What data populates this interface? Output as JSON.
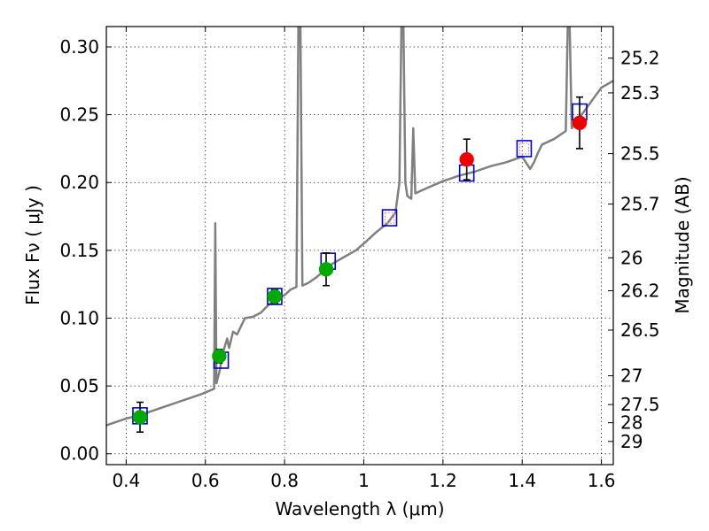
{
  "chart_data": {
    "type": "scatter",
    "title": "",
    "xlabel": "Wavelength  λ (μm)",
    "ylabel": "Flux  Fν  ( μJy )",
    "y2label": "Magnitude (AB)",
    "xlim": [
      0.35,
      1.63
    ],
    "ylim": [
      -0.008,
      0.315
    ],
    "grid": true,
    "x_ticks": [
      0.4,
      0.6,
      0.8,
      1.0,
      1.2,
      1.4,
      1.6
    ],
    "x_tick_labels": [
      "0.4",
      "0.6",
      "0.8",
      "1",
      "1.2",
      "1.4",
      "1.6"
    ],
    "y_ticks": [
      0.0,
      0.05,
      0.1,
      0.15,
      0.2,
      0.25,
      0.3
    ],
    "y_tick_labels": [
      "0.00",
      "0.05",
      "0.10",
      "0.15",
      "0.20",
      "0.25",
      "0.30"
    ],
    "mag_ticks": [
      {
        "label": "25.2",
        "flux": 0.2917
      },
      {
        "label": "25.3",
        "flux": 0.2661
      },
      {
        "label": "25.5",
        "flux": 0.2213
      },
      {
        "label": "25.7",
        "flux": 0.1841
      },
      {
        "label": "26",
        "flux": 0.1445
      },
      {
        "label": "26.2",
        "flux": 0.1202
      },
      {
        "label": "26.5",
        "flux": 0.0912
      },
      {
        "label": "27",
        "flux": 0.0575
      },
      {
        "label": "27.5",
        "flux": 0.0363
      },
      {
        "label": "28",
        "flux": 0.0229
      },
      {
        "label": "29",
        "flux": 0.0091
      }
    ],
    "spectrum": {
      "color": "#808080",
      "points": [
        [
          0.35,
          0.021
        ],
        [
          0.38,
          0.024
        ],
        [
          0.4,
          0.026
        ],
        [
          0.43,
          0.028
        ],
        [
          0.46,
          0.031
        ],
        [
          0.5,
          0.035
        ],
        [
          0.53,
          0.038
        ],
        [
          0.56,
          0.041
        ],
        [
          0.59,
          0.044
        ],
        [
          0.615,
          0.047
        ],
        [
          0.622,
          0.048
        ],
        [
          0.625,
          0.17
        ],
        [
          0.628,
          0.052
        ],
        [
          0.635,
          0.06
        ],
        [
          0.645,
          0.075
        ],
        [
          0.655,
          0.085
        ],
        [
          0.66,
          0.078
        ],
        [
          0.67,
          0.09
        ],
        [
          0.68,
          0.088
        ],
        [
          0.69,
          0.094
        ],
        [
          0.7,
          0.1
        ],
        [
          0.72,
          0.101
        ],
        [
          0.74,
          0.104
        ],
        [
          0.76,
          0.11
        ],
        [
          0.78,
          0.114
        ],
        [
          0.8,
          0.117
        ],
        [
          0.815,
          0.121
        ],
        [
          0.83,
          0.123
        ],
        [
          0.835,
          0.315
        ],
        [
          0.84,
          0.315
        ],
        [
          0.845,
          0.124
        ],
        [
          0.86,
          0.126
        ],
        [
          0.88,
          0.13
        ],
        [
          0.9,
          0.135
        ],
        [
          0.92,
          0.14
        ],
        [
          0.95,
          0.145
        ],
        [
          0.98,
          0.15
        ],
        [
          1.0,
          0.155
        ],
        [
          1.03,
          0.163
        ],
        [
          1.06,
          0.17
        ],
        [
          1.08,
          0.178
        ],
        [
          1.09,
          0.2
        ],
        [
          1.095,
          0.315
        ],
        [
          1.1,
          0.315
        ],
        [
          1.105,
          0.2
        ],
        [
          1.11,
          0.19
        ],
        [
          1.12,
          0.188
        ],
        [
          1.125,
          0.24
        ],
        [
          1.13,
          0.192
        ],
        [
          1.16,
          0.196
        ],
        [
          1.2,
          0.201
        ],
        [
          1.24,
          0.205
        ],
        [
          1.28,
          0.208
        ],
        [
          1.32,
          0.212
        ],
        [
          1.36,
          0.215
        ],
        [
          1.4,
          0.219
        ],
        [
          1.42,
          0.21
        ],
        [
          1.43,
          0.215
        ],
        [
          1.44,
          0.222
        ],
        [
          1.45,
          0.228
        ],
        [
          1.48,
          0.232
        ],
        [
          1.5,
          0.236
        ],
        [
          1.51,
          0.238
        ],
        [
          1.515,
          0.315
        ],
        [
          1.52,
          0.315
        ],
        [
          1.525,
          0.24
        ],
        [
          1.55,
          0.25
        ],
        [
          1.58,
          0.262
        ],
        [
          1.6,
          0.27
        ],
        [
          1.63,
          0.275
        ]
      ]
    },
    "series": [
      {
        "color": "#00aa00",
        "points": [
          {
            "x": 0.435,
            "y": 0.027,
            "yerr": 0.011
          },
          {
            "x": 0.635,
            "y": 0.072,
            "yerr": 0.005
          },
          {
            "x": 0.775,
            "y": 0.116,
            "yerr": 0.005
          },
          {
            "x": 0.905,
            "y": 0.136,
            "yerr": 0.012
          }
        ]
      },
      {
        "color": "#ee0000",
        "points": [
          {
            "x": 1.26,
            "y": 0.217,
            "yerr": 0.015
          },
          {
            "x": 1.545,
            "y": 0.244,
            "yerr": 0.019
          }
        ]
      }
    ],
    "model_squares": {
      "color": "#0000cc",
      "x": [
        0.435,
        0.64,
        0.775,
        0.91,
        1.065,
        1.26,
        1.405,
        1.545
      ],
      "y": [
        0.028,
        0.069,
        0.116,
        0.142,
        0.174,
        0.207,
        0.225,
        0.252
      ]
    },
    "red_squares": {
      "color": "#ff8888",
      "x": [
        1.065,
        1.405
      ],
      "y": [
        0.174,
        0.225
      ]
    }
  }
}
